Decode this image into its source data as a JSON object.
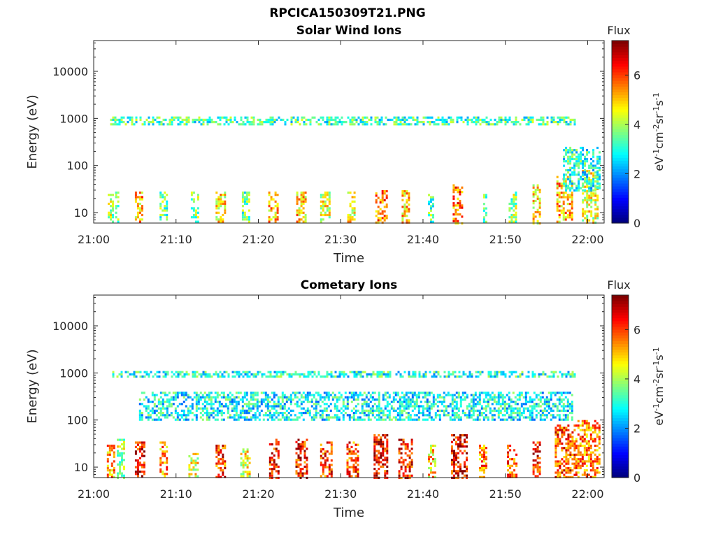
{
  "figure": {
    "title": "RPCICA150309T21.PNG"
  },
  "chart_data": [
    {
      "type": "heatmap",
      "title": "Solar Wind Ions",
      "xlabel": "Time",
      "ylabel": "Energy (eV)",
      "x_ticks": [
        "21:00",
        "21:10",
        "21:20",
        "21:30",
        "21:40",
        "21:50",
        "22:00"
      ],
      "x_range_minutes": [
        0,
        62
      ],
      "y_scale": "log",
      "y_ticks": [
        10,
        100,
        1000,
        10000
      ],
      "y_tick_labels": [
        "10",
        "100",
        "1000",
        "10000"
      ],
      "y_range": [
        6,
        45000
      ],
      "colorbar": {
        "label": "Flux",
        "unit": "eV-1cm-2sr-1s-1",
        "range": [
          0,
          7.4
        ],
        "ticks": [
          "0",
          "2",
          "4",
          "6"
        ]
      },
      "grid": false,
      "features": [
        {
          "t_min": 1.7,
          "t_max": 2.3,
          "e_min": 6,
          "e_max": 28,
          "flux": 4.0
        },
        {
          "t_min": 2.6,
          "t_max": 3.0,
          "e_min": 6,
          "e_max": 28,
          "flux": 3.5
        },
        {
          "t_min": 5.0,
          "t_max": 6.0,
          "e_min": 6,
          "e_max": 28,
          "flux": 5.2
        },
        {
          "t_min": 8.0,
          "t_max": 8.8,
          "e_min": 6,
          "e_max": 28,
          "flux": 3.5
        },
        {
          "t_min": 11.8,
          "t_max": 12.6,
          "e_min": 6,
          "e_max": 28,
          "flux": 3.8
        },
        {
          "t_min": 14.8,
          "t_max": 16.0,
          "e_min": 6,
          "e_max": 28,
          "flux": 4.8
        },
        {
          "t_min": 18.0,
          "t_max": 19.0,
          "e_min": 6,
          "e_max": 28,
          "flux": 3.5
        },
        {
          "t_min": 21.2,
          "t_max": 22.3,
          "e_min": 6,
          "e_max": 28,
          "flux": 5.0
        },
        {
          "t_min": 24.6,
          "t_max": 25.7,
          "e_min": 6,
          "e_max": 28,
          "flux": 5.0
        },
        {
          "t_min": 27.5,
          "t_max": 28.6,
          "e_min": 6,
          "e_max": 28,
          "flux": 4.5
        },
        {
          "t_min": 30.8,
          "t_max": 31.8,
          "e_min": 6,
          "e_max": 28,
          "flux": 4.6
        },
        {
          "t_min": 34.2,
          "t_max": 35.6,
          "e_min": 6,
          "e_max": 30,
          "flux": 5.6
        },
        {
          "t_min": 37.4,
          "t_max": 38.4,
          "e_min": 6,
          "e_max": 30,
          "flux": 5.0
        },
        {
          "t_min": 40.6,
          "t_max": 41.2,
          "e_min": 6,
          "e_max": 25,
          "flux": 3.5
        },
        {
          "t_min": 43.6,
          "t_max": 44.8,
          "e_min": 6,
          "e_max": 40,
          "flux": 5.6
        },
        {
          "t_min": 47.3,
          "t_max": 47.8,
          "e_min": 6,
          "e_max": 25,
          "flux": 3.2
        },
        {
          "t_min": 50.4,
          "t_max": 51.2,
          "e_min": 6,
          "e_max": 28,
          "flux": 3.8
        },
        {
          "t_min": 53.3,
          "t_max": 54.2,
          "e_min": 6,
          "e_max": 40,
          "flux": 4.8
        },
        {
          "t_min": 56.2,
          "t_max": 58.0,
          "e_min": 6,
          "e_max": 60,
          "flux": 5.2
        },
        {
          "t_min": 59.3,
          "t_max": 61.3,
          "e_min": 6,
          "e_max": 80,
          "flux": 4.4
        },
        {
          "t_min": 2.0,
          "t_max": 58.5,
          "e_min": 750,
          "e_max": 1100,
          "flux": 3.2
        },
        {
          "t_min": 57.0,
          "t_max": 61.5,
          "e_min": 30,
          "e_max": 250,
          "flux": 3.0
        }
      ]
    },
    {
      "type": "heatmap",
      "title": "Cometary Ions",
      "xlabel": "Time",
      "ylabel": "Energy (eV)",
      "x_ticks": [
        "21:00",
        "21:10",
        "21:20",
        "21:30",
        "21:40",
        "21:50",
        "22:00"
      ],
      "x_range_minutes": [
        0,
        62
      ],
      "y_scale": "log",
      "y_ticks": [
        10,
        100,
        1000,
        10000
      ],
      "y_tick_labels": [
        "10",
        "100",
        "1000",
        "10000"
      ],
      "y_range": [
        6,
        45000
      ],
      "colorbar": {
        "label": "Flux",
        "unit": "eV-1cm-2sr-1s-1",
        "range": [
          0,
          7.4
        ],
        "ticks": [
          "0",
          "2",
          "4",
          "6"
        ]
      },
      "grid": false,
      "features": [
        {
          "t_min": 1.6,
          "t_max": 2.4,
          "e_min": 6,
          "e_max": 30,
          "flux": 5.2
        },
        {
          "t_min": 2.8,
          "t_max": 3.6,
          "e_min": 6,
          "e_max": 40,
          "flux": 4.0
        },
        {
          "t_min": 5.0,
          "t_max": 6.2,
          "e_min": 6,
          "e_max": 35,
          "flux": 6.4
        },
        {
          "t_min": 8.0,
          "t_max": 9.0,
          "e_min": 6,
          "e_max": 35,
          "flux": 5.4
        },
        {
          "t_min": 11.5,
          "t_max": 12.6,
          "e_min": 6,
          "e_max": 20,
          "flux": 4.6
        },
        {
          "t_min": 14.8,
          "t_max": 16.0,
          "e_min": 6,
          "e_max": 30,
          "flux": 6.0
        },
        {
          "t_min": 17.8,
          "t_max": 19.0,
          "e_min": 6,
          "e_max": 25,
          "flux": 4.5
        },
        {
          "t_min": 21.3,
          "t_max": 22.5,
          "e_min": 6,
          "e_max": 40,
          "flux": 6.4
        },
        {
          "t_min": 24.5,
          "t_max": 25.8,
          "e_min": 6,
          "e_max": 40,
          "flux": 6.4
        },
        {
          "t_min": 27.5,
          "t_max": 28.8,
          "e_min": 6,
          "e_max": 35,
          "flux": 6.0
        },
        {
          "t_min": 30.7,
          "t_max": 32.0,
          "e_min": 6,
          "e_max": 35,
          "flux": 6.0
        },
        {
          "t_min": 34.0,
          "t_max": 35.6,
          "e_min": 6,
          "e_max": 50,
          "flux": 6.6
        },
        {
          "t_min": 37.0,
          "t_max": 38.6,
          "e_min": 6,
          "e_max": 40,
          "flux": 6.2
        },
        {
          "t_min": 40.6,
          "t_max": 41.6,
          "e_min": 6,
          "e_max": 30,
          "flux": 5.0
        },
        {
          "t_min": 43.4,
          "t_max": 45.2,
          "e_min": 6,
          "e_max": 50,
          "flux": 6.6
        },
        {
          "t_min": 46.8,
          "t_max": 47.8,
          "e_min": 6,
          "e_max": 30,
          "flux": 5.6
        },
        {
          "t_min": 50.2,
          "t_max": 51.4,
          "e_min": 6,
          "e_max": 30,
          "flux": 5.8
        },
        {
          "t_min": 53.3,
          "t_max": 54.3,
          "e_min": 6,
          "e_max": 35,
          "flux": 6.2
        },
        {
          "t_min": 56.0,
          "t_max": 58.5,
          "e_min": 6,
          "e_max": 80,
          "flux": 6.0
        },
        {
          "t_min": 58.5,
          "t_max": 61.5,
          "e_min": 6,
          "e_max": 100,
          "flux": 5.6
        },
        {
          "t_min": 5.5,
          "t_max": 58.0,
          "e_min": 100,
          "e_max": 400,
          "flux": 2.8
        },
        {
          "t_min": 2.0,
          "t_max": 58.5,
          "e_min": 800,
          "e_max": 1100,
          "flux": 3.0
        }
      ]
    }
  ]
}
